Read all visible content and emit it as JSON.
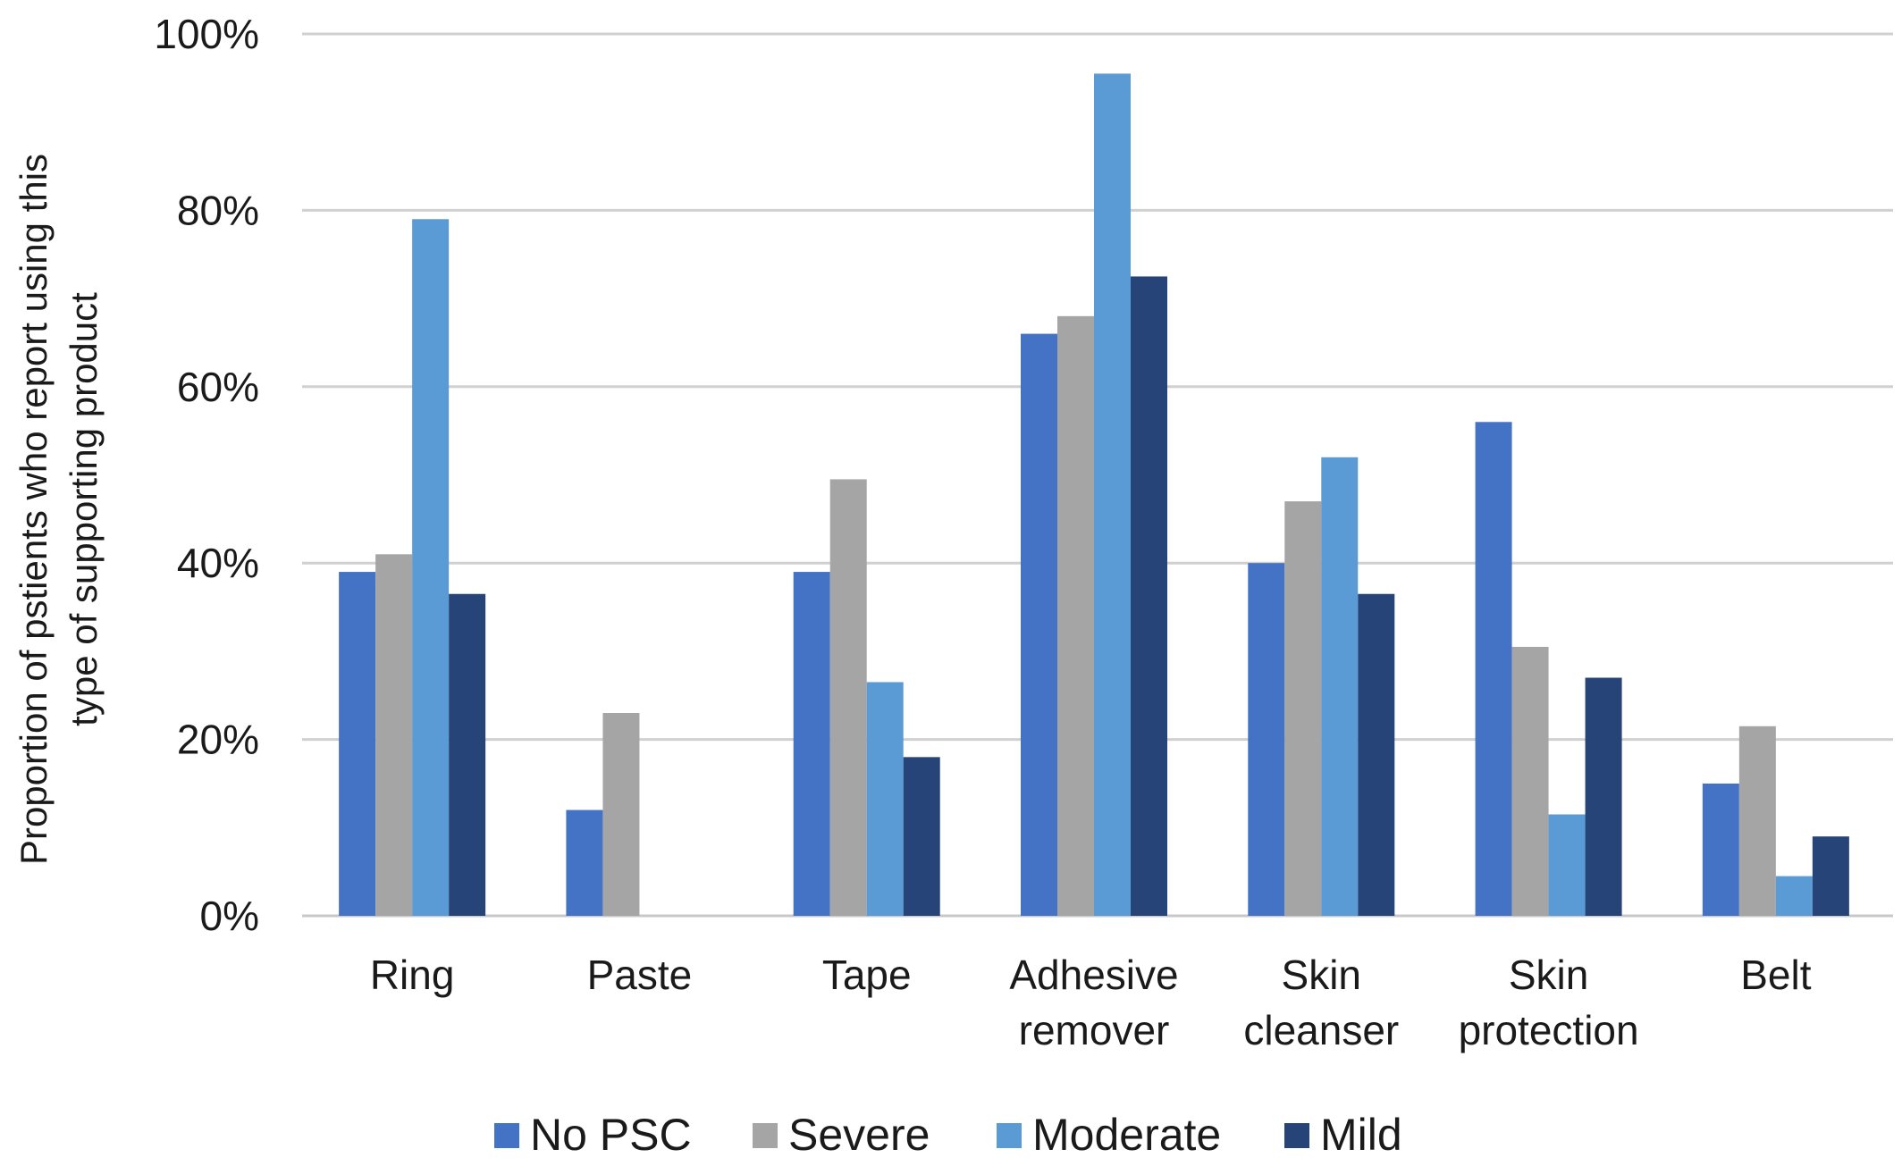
{
  "chart_data": {
    "type": "bar",
    "title": "",
    "xlabel": "",
    "ylabel_lines": [
      "Proportion of pstients who report using this",
      "type of supporting product"
    ],
    "ylim": [
      0,
      100
    ],
    "yticks": [
      0,
      20,
      40,
      60,
      80,
      100
    ],
    "ytick_labels": [
      "0%",
      "20%",
      "40%",
      "60%",
      "80%",
      "100%"
    ],
    "grid": true,
    "legend_position": "bottom",
    "categories": [
      [
        "Ring"
      ],
      [
        "Paste"
      ],
      [
        "Tape"
      ],
      [
        "Adhesive",
        "remover"
      ],
      [
        "Skin",
        "cleanser"
      ],
      [
        "Skin",
        "protection"
      ],
      [
        "Belt"
      ]
    ],
    "series": [
      {
        "name": "No PSC",
        "color": "#4472C4",
        "values": [
          39,
          12,
          39,
          66,
          40,
          56,
          15
        ]
      },
      {
        "name": "Severe",
        "color": "#A5A5A5",
        "values": [
          41,
          23,
          49.5,
          68,
          47,
          30.5,
          21.5
        ]
      },
      {
        "name": "Moderate",
        "color": "#5B9BD5",
        "values": [
          79,
          0,
          26.5,
          95.5,
          52,
          11.5,
          4.5
        ]
      },
      {
        "name": "Mild",
        "color": "#264478",
        "values": [
          36.5,
          0,
          18,
          72.5,
          36.5,
          27,
          9
        ]
      }
    ]
  }
}
